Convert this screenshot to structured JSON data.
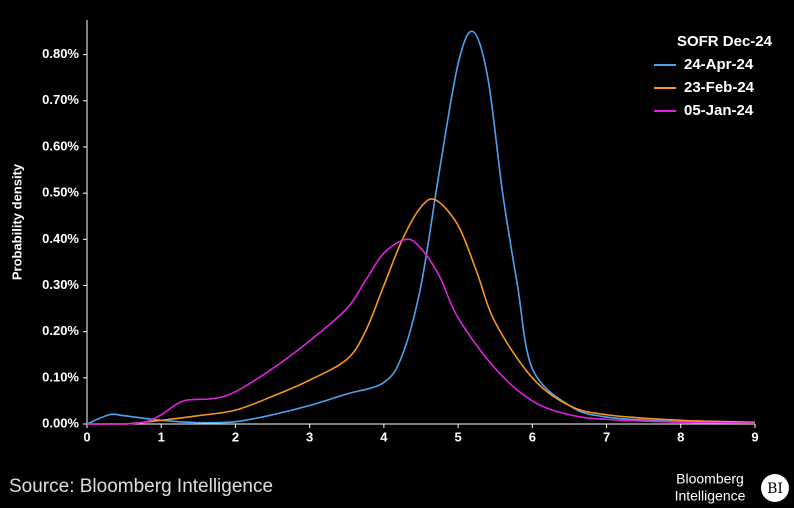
{
  "chart_data": {
    "type": "line",
    "y_label": "Probability density",
    "legend_title": "SOFR Dec-24",
    "legend": "top-right",
    "xlim": [
      0,
      9
    ],
    "xticks": [
      0,
      1,
      2,
      3,
      4,
      5,
      6,
      7,
      8,
      9
    ],
    "ylim": [
      0,
      0.875
    ],
    "yticks": [
      {
        "value": 0,
        "label": "0.00%"
      },
      {
        "value": 0.1,
        "label": "0.10%"
      },
      {
        "value": 0.2,
        "label": "0.20%"
      },
      {
        "value": 0.3,
        "label": "0.30%"
      },
      {
        "value": 0.4,
        "label": "0.40%"
      },
      {
        "value": 0.5,
        "label": "0.50%"
      },
      {
        "value": 0.6,
        "label": "0.60%"
      },
      {
        "value": 0.7,
        "label": "0.70%"
      },
      {
        "value": 0.8,
        "label": "0.80%"
      }
    ],
    "series": [
      {
        "name": "24-Apr-24",
        "color": "#4da3ef",
        "x": [
          0,
          0.3,
          0.5,
          1,
          1.5,
          2,
          2.5,
          3,
          3.5,
          4,
          4.25,
          4.5,
          4.75,
          5,
          5.2,
          5.4,
          5.6,
          5.8,
          6,
          6.5,
          7,
          8,
          9
        ],
        "values": [
          0,
          0.02,
          0.018,
          0.008,
          0.003,
          0.005,
          0.02,
          0.04,
          0.065,
          0.09,
          0.15,
          0.3,
          0.55,
          0.78,
          0.85,
          0.75,
          0.5,
          0.3,
          0.12,
          0.04,
          0.015,
          0.005,
          0.003
        ]
      },
      {
        "name": "23-Feb-24",
        "color": "#f5981f",
        "x": [
          0,
          0.5,
          1,
          1.5,
          2,
          2.5,
          3,
          3.5,
          3.75,
          4,
          4.25,
          4.5,
          4.7,
          5,
          5.25,
          5.5,
          6,
          6.5,
          7,
          8,
          9
        ],
        "values": [
          0,
          0,
          0.008,
          0.018,
          0.03,
          0.06,
          0.095,
          0.14,
          0.2,
          0.3,
          0.4,
          0.47,
          0.485,
          0.43,
          0.33,
          0.22,
          0.1,
          0.04,
          0.02,
          0.008,
          0.004
        ]
      },
      {
        "name": "05-Jan-24",
        "color": "#e022e0",
        "x": [
          0,
          0.5,
          0.8,
          1,
          1.3,
          1.7,
          2,
          2.5,
          3,
          3.5,
          3.75,
          4,
          4.3,
          4.5,
          4.75,
          5,
          5.5,
          6,
          6.5,
          7,
          8,
          9
        ],
        "values": [
          0,
          0,
          0.005,
          0.02,
          0.05,
          0.055,
          0.07,
          0.12,
          0.18,
          0.25,
          0.31,
          0.37,
          0.4,
          0.38,
          0.32,
          0.23,
          0.12,
          0.05,
          0.02,
          0.01,
          0.004,
          0.002
        ]
      }
    ]
  },
  "source": "Source: Bloomberg Intelligence",
  "logo": {
    "line1": "Bloomberg",
    "line2": "Intelligence",
    "badge": "BI"
  }
}
